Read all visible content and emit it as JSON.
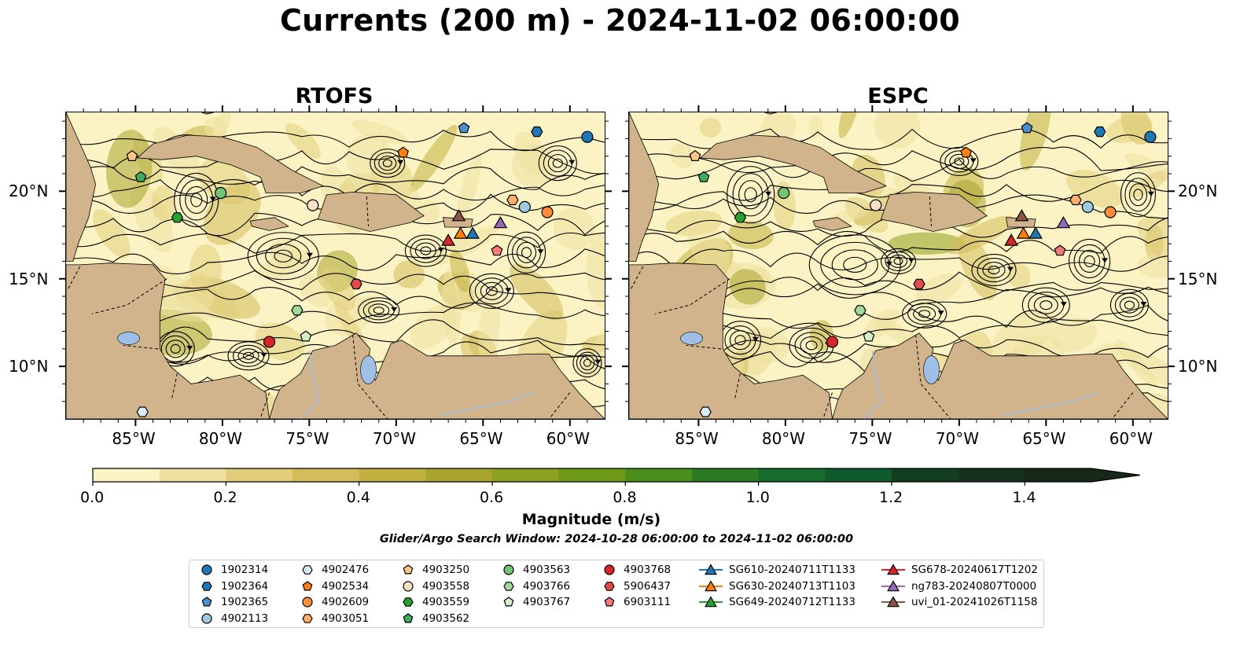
{
  "title": "Currents (200 m) - 2024-11-02 06:00:00",
  "panels": [
    {
      "title": "RTOFS",
      "dataset": "rtofs"
    },
    {
      "title": "ESPC",
      "dataset": "espc"
    }
  ],
  "map_extent": {
    "lon_min": -89,
    "lon_max": -58,
    "lat_min": 7,
    "lat_max": 24.5
  },
  "lat_ticks": [
    "20°N",
    "15°N",
    "10°N"
  ],
  "lat_tick_values": [
    20,
    15,
    10
  ],
  "lon_ticks": [
    "85°W",
    "80°W",
    "75°W",
    "70°W",
    "65°W",
    "60°W"
  ],
  "lon_tick_values": [
    -85,
    -80,
    -75,
    -70,
    -65,
    -60
  ],
  "colorbar": {
    "label": "Magnitude (m/s)",
    "ticks": [
      "0.0",
      "0.2",
      "0.4",
      "0.6",
      "0.8",
      "1.0",
      "1.2",
      "1.4"
    ],
    "tick_values": [
      0,
      0.2,
      0.4,
      0.6,
      0.8,
      1.0,
      1.2,
      1.4
    ],
    "vmin": 0,
    "vmax": 1.5,
    "extend": "max",
    "colors": [
      "#fbf3c4",
      "#efe0a0",
      "#e2cd7c",
      "#d4bc5c",
      "#c2b040",
      "#a8a42e",
      "#8ea020",
      "#6e9818",
      "#4a8e1c",
      "#2a7a24",
      "#156c2c",
      "#0f5a2c",
      "#143e22",
      "#16301c",
      "#182818"
    ]
  },
  "search_window": "Glider/Argo Search Window: 2024-10-28 06:00:00 to 2024-11-02 06:00:00",
  "land_color": "#d2b48c",
  "ocean_color": "#9fbfe6",
  "legend": {
    "columns": [
      [
        {
          "label": "1902314",
          "marker": "circle",
          "color": "#1f77b4"
        },
        {
          "label": "1902364",
          "marker": "hexagon",
          "color": "#1f77b4"
        },
        {
          "label": "1902365",
          "marker": "pentagon",
          "color": "#4a90d0"
        },
        {
          "label": "4902113",
          "marker": "circle",
          "color": "#9ecae1"
        }
      ],
      [
        {
          "label": "4902476",
          "marker": "hexagon",
          "color": "#d8ecf6"
        },
        {
          "label": "4902534",
          "marker": "pentagon",
          "color": "#ff7f0e"
        },
        {
          "label": "4902609",
          "marker": "circle",
          "color": "#fd8d3c"
        },
        {
          "label": "4903051",
          "marker": "hexagon",
          "color": "#fdae6b"
        }
      ],
      [
        {
          "label": "4903250",
          "marker": "pentagon",
          "color": "#fdc58a"
        },
        {
          "label": "4903558",
          "marker": "circle",
          "color": "#fde0c8"
        },
        {
          "label": "4903559",
          "marker": "hexagon",
          "color": "#2ca02c"
        },
        {
          "label": "4903562",
          "marker": "pentagon",
          "color": "#41ab5d"
        }
      ],
      [
        {
          "label": "4903563",
          "marker": "circle",
          "color": "#74c476"
        },
        {
          "label": "4903766",
          "marker": "hexagon",
          "color": "#a1d99b"
        },
        {
          "label": "4903767",
          "marker": "pentagon",
          "color": "#d2f0c8"
        }
      ],
      [
        {
          "label": "4903768",
          "marker": "circle",
          "color": "#d62728"
        },
        {
          "label": "5906437",
          "marker": "hexagon",
          "color": "#e34a4a"
        },
        {
          "label": "6903111",
          "marker": "pentagon",
          "color": "#f47a7a"
        }
      ],
      [
        {
          "label": "SG610-20240711T1133",
          "marker": "triangle",
          "color": "#1f77b4"
        },
        {
          "label": "SG630-20240713T1103",
          "marker": "triangle",
          "color": "#ff7f0e"
        },
        {
          "label": "SG649-20240712T1133",
          "marker": "triangle",
          "color": "#2ca02c"
        }
      ],
      [
        {
          "label": "SG678-20240617T1202",
          "marker": "triangle",
          "color": "#d62728"
        },
        {
          "label": "ng783-20240807T0000",
          "marker": "triangle",
          "color": "#9467bd"
        },
        {
          "label": "uvi_01-20241026T1158",
          "marker": "triangle",
          "color": "#8c564b"
        }
      ]
    ]
  },
  "argo_floats": [
    {
      "id": "1902314",
      "lon": -59.0,
      "lat": 23.1,
      "marker": "circle",
      "color": "#1f77b4"
    },
    {
      "id": "1902364",
      "lon": -61.9,
      "lat": 23.4,
      "marker": "hexagon",
      "color": "#1f77b4"
    },
    {
      "id": "1902365",
      "lon": -66.1,
      "lat": 23.6,
      "marker": "pentagon",
      "color": "#4a90d0"
    },
    {
      "id": "4902113",
      "lon": -62.6,
      "lat": 19.1,
      "marker": "circle",
      "color": "#9ecae1"
    },
    {
      "id": "4902476",
      "lon": -84.6,
      "lat": 7.4,
      "marker": "hexagon",
      "color": "#d8ecf6"
    },
    {
      "id": "4902534",
      "lon": -69.6,
      "lat": 22.2,
      "marker": "pentagon",
      "color": "#ff7f0e"
    },
    {
      "id": "4902609",
      "lon": -61.3,
      "lat": 18.8,
      "marker": "circle",
      "color": "#fd8d3c"
    },
    {
      "id": "4903051",
      "lon": -63.3,
      "lat": 19.5,
      "marker": "hexagon",
      "color": "#fdae6b"
    },
    {
      "id": "4903250",
      "lon": -85.2,
      "lat": 22.0,
      "marker": "pentagon",
      "color": "#fdc58a"
    },
    {
      "id": "4903558",
      "lon": -74.8,
      "lat": 19.2,
      "marker": "circle",
      "color": "#fde0c8"
    },
    {
      "id": "4903559",
      "lon": -82.6,
      "lat": 18.5,
      "marker": "hexagon",
      "color": "#2ca02c"
    },
    {
      "id": "4903562",
      "lon": -84.7,
      "lat": 20.8,
      "marker": "pentagon",
      "color": "#41ab5d"
    },
    {
      "id": "4903563",
      "lon": -80.1,
      "lat": 19.9,
      "marker": "circle",
      "color": "#74c476"
    },
    {
      "id": "4903766",
      "lon": -75.7,
      "lat": 13.2,
      "marker": "hexagon",
      "color": "#a1d99b"
    },
    {
      "id": "4903767",
      "lon": -75.2,
      "lat": 11.7,
      "marker": "pentagon",
      "color": "#d2f0c8"
    },
    {
      "id": "4903768",
      "lon": -77.3,
      "lat": 11.4,
      "marker": "circle",
      "color": "#d62728"
    },
    {
      "id": "5906437",
      "lon": -72.3,
      "lat": 14.7,
      "marker": "hexagon",
      "color": "#e34a4a"
    },
    {
      "id": "6903111",
      "lon": -64.2,
      "lat": 16.6,
      "marker": "pentagon",
      "color": "#f47a7a"
    }
  ],
  "gliders": [
    {
      "id": "SG610-20240711T1133",
      "lon": -65.6,
      "lat": 17.6,
      "color": "#1f77b4"
    },
    {
      "id": "SG630-20240713T1103",
      "lon": -66.3,
      "lat": 17.6,
      "color": "#ff7f0e"
    },
    {
      "id": "SG649-20240712T1133",
      "lon": -67.0,
      "lat": 17.2,
      "color": "#2ca02c"
    },
    {
      "id": "SG678-20240617T1202",
      "lon": -67.0,
      "lat": 17.2,
      "color": "#d62728"
    },
    {
      "id": "ng783-20240807T0000",
      "lon": -64.0,
      "lat": 18.2,
      "color": "#9467bd"
    },
    {
      "id": "uvi_01-20241026T1158",
      "lon": -66.4,
      "lat": 18.6,
      "color": "#8c564b"
    }
  ]
}
